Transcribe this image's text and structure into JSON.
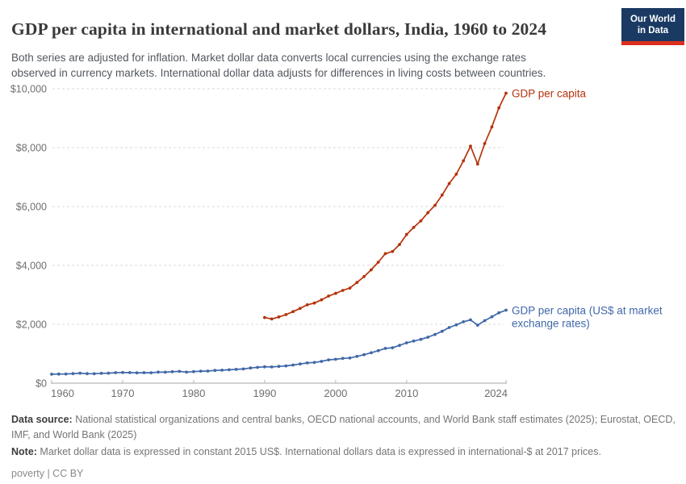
{
  "header": {
    "title": "GDP per capita in international and market dollars, India, 1960 to 2024",
    "subtitle_lines": [
      "Both series are adjusted for inflation. Market dollar data converts local currencies using the exchange rates",
      "observed in currency markets. International dollar data adjusts for differences in living costs between countries."
    ]
  },
  "logo": {
    "line1": "Our World",
    "line2": "in Data"
  },
  "chart_data": {
    "type": "line",
    "title": "GDP per capita in international and market dollars, India, 1960 to 2024",
    "xlabel": "",
    "ylabel": "",
    "x_range": [
      1960,
      2024
    ],
    "y_range": [
      0,
      10000
    ],
    "grid": "dashed-horizontal",
    "legend_position": "end-of-line-labels",
    "x_ticks": [
      1960,
      1970,
      1980,
      1990,
      2000,
      2010,
      2024
    ],
    "y_ticks": [
      {
        "value": 0,
        "label": "$0"
      },
      {
        "value": 2000,
        "label": "$2,000"
      },
      {
        "value": 4000,
        "label": "$4,000"
      },
      {
        "value": 6000,
        "label": "$6,000"
      },
      {
        "value": 8000,
        "label": "$8,000"
      },
      {
        "value": 10000,
        "label": "$10,000"
      }
    ],
    "series": [
      {
        "name": "GDP per capita",
        "label_lines": [
          "GDP per capita"
        ],
        "color": "#b5330c",
        "start_year": 1990,
        "values": [
          2230,
          2180,
          2250,
          2330,
          2430,
          2540,
          2660,
          2720,
          2830,
          2960,
          3050,
          3150,
          3230,
          3420,
          3620,
          3850,
          4110,
          4400,
          4470,
          4710,
          5050,
          5290,
          5510,
          5790,
          6040,
          6390,
          6780,
          7100,
          7550,
          8050,
          7440,
          8140,
          8700,
          9350,
          9850
        ]
      },
      {
        "name": "GDP per capita (US$ at market exchange rates)",
        "label_lines": [
          "GDP per capita (US$ at market",
          "exchange rates)"
        ],
        "color": "#4068a8",
        "start_year": 1960,
        "values": [
          304,
          310,
          313,
          324,
          339,
          324,
          320,
          335,
          341,
          356,
          362,
          358,
          352,
          356,
          353,
          375,
          372,
          390,
          401,
          375,
          392,
          407,
          412,
          432,
          440,
          455,
          469,
          481,
          516,
          538,
          557,
          550,
          569,
          587,
          616,
          651,
          689,
          705,
          740,
          791,
          812,
          840,
          855,
          910,
          966,
          1032,
          1105,
          1181,
          1203,
          1282,
          1371,
          1429,
          1487,
          1561,
          1655,
          1762,
          1890,
          1981,
          2085,
          2152,
          1971,
          2124,
          2251,
          2390,
          2480
        ]
      }
    ]
  },
  "footer": {
    "source_label": "Data source:",
    "source_text": " National statistical organizations and central banks, OECD national accounts, and World Bank staff estimates (2025); Eurostat, OECD, IMF, and World Bank (2025)",
    "note_label": "Note:",
    "note_text": " Market dollar data is expressed in constant 2015 US$. International dollars data is expressed in international-$ at 2017 prices.",
    "license": "poverty | CC BY"
  },
  "colors": {
    "series_international": "#b5330c",
    "series_market": "#4068a8",
    "logo_navy": "#1a3a63",
    "logo_red": "#dc2e1c",
    "grid": "#dadada",
    "axis": "#a6a6a6",
    "tick_text": "#6e6e6e"
  }
}
